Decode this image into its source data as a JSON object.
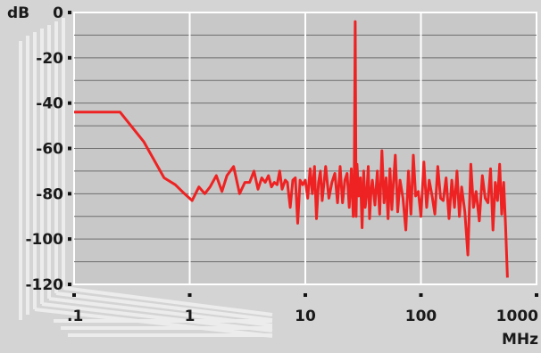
{
  "chart_data": {
    "type": "line",
    "title": "",
    "xlabel": "MHz",
    "ylabel": "dB",
    "x_scale": "log",
    "xlim": [
      0.1,
      1000
    ],
    "ylim": [
      -120,
      0
    ],
    "x_ticks": [
      ".1",
      "1",
      "10",
      "100",
      "1000"
    ],
    "y_ticks": [
      "0",
      "-20",
      "-40",
      "-60",
      "-80",
      "-100",
      "-120"
    ],
    "y_tick_values": [
      0,
      -20,
      -40,
      -60,
      -80,
      -100,
      -120
    ],
    "grid": true,
    "line_color": "#ee2222",
    "grid_color": "#ffffff",
    "series": [
      {
        "x": [
          0.1,
          0.15,
          0.25,
          0.4,
          0.6,
          0.75,
          0.9,
          1.05,
          1.2,
          1.35,
          1.5,
          1.7,
          1.9,
          2.1,
          2.4,
          2.7,
          3.0,
          3.3,
          3.6,
          3.9,
          4.2,
          4.5,
          4.8,
          5.1,
          5.4,
          5.7,
          6.0,
          6.3,
          6.7,
          7.0,
          7.4,
          7.8,
          8.2,
          8.6,
          9.0,
          9.5,
          10.0,
          10.5,
          11.0,
          11.5,
          12.0,
          12.5,
          13.0,
          13.5,
          14.0,
          15.0,
          16.0,
          17.0,
          18.0,
          19.0,
          20.0,
          21.0,
          22.0,
          23.0,
          24.0,
          25.0,
          26.0,
          26.5,
          27.0,
          27.5,
          28.0,
          29.0,
          30.0,
          31.0,
          32.0,
          33.0,
          34.0,
          35.0,
          36.0,
          37.0,
          38.0,
          40.0,
          42.0,
          44.0,
          46.0,
          48.0,
          50.0,
          52.0,
          54.0,
          56.0,
          58.0,
          60.0,
          63.0,
          66.0,
          70.0,
          74.0,
          78.0,
          82.0,
          86.0,
          90.0,
          95.0,
          100.0,
          106.0,
          112.0,
          118.0,
          125.0,
          132.0,
          140.0,
          148.0,
          156.0,
          165.0,
          175.0,
          185.0,
          195.0,
          205.0,
          215.0,
          225.0,
          240.0,
          255.0,
          270.0,
          285.0,
          300.0,
          320.0,
          340.0,
          360.0,
          380.0,
          400.0,
          420.0,
          440.0,
          460.0,
          480.0,
          500.0,
          520.0,
          540.0,
          560.0
        ],
        "y": [
          -44,
          -44,
          -44,
          -57,
          -73,
          -76,
          -80,
          -83,
          -77,
          -80,
          -77,
          -72,
          -79,
          -72,
          -68,
          -80,
          -75,
          -75,
          -70,
          -78,
          -73,
          -75,
          -72,
          -77,
          -75,
          -76,
          -70,
          -78,
          -74,
          -75,
          -86,
          -74,
          -73,
          -93,
          -74,
          -76,
          -74,
          -82,
          -69,
          -80,
          -68,
          -91,
          -75,
          -70,
          -83,
          -68,
          -82,
          -75,
          -71,
          -84,
          -68,
          -84,
          -74,
          -71,
          -86,
          -69,
          -90,
          -73,
          -4,
          -90,
          -67,
          -81,
          -73,
          -95,
          -70,
          -86,
          -80,
          -68,
          -91,
          -79,
          -74,
          -85,
          -70,
          -89,
          -61,
          -84,
          -73,
          -91,
          -69,
          -87,
          -74,
          -63,
          -88,
          -74,
          -82,
          -96,
          -70,
          -89,
          -63,
          -81,
          -79,
          -90,
          -66,
          -86,
          -74,
          -81,
          -89,
          -68,
          -82,
          -83,
          -73,
          -91,
          -74,
          -86,
          -70,
          -90,
          -77,
          -88,
          -107,
          -67,
          -86,
          -79,
          -92,
          -72,
          -82,
          -84,
          -69,
          -96,
          -75,
          -83,
          -67,
          -89,
          -75,
          -94,
          -117
        ]
      }
    ]
  }
}
